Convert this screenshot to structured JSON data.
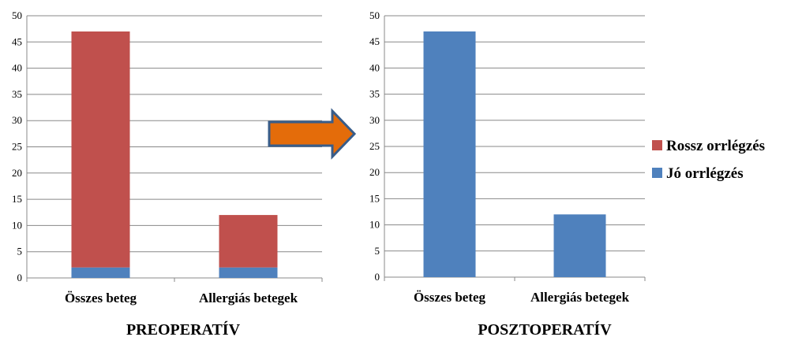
{
  "colors": {
    "bad": "#C0504D",
    "good": "#4F81BD",
    "arrow_fill": "#E46C0A",
    "arrow_stroke": "#385D8A",
    "grid": "#888888"
  },
  "legend": [
    {
      "label": "Rossz orrlégzés",
      "color": "#C0504D"
    },
    {
      "label": "Jó orrlégzés",
      "color": "#4F81BD"
    }
  ],
  "arrow_icon": "right-arrow-icon",
  "chart_data": [
    {
      "type": "bar",
      "stacked": true,
      "title": "PREOPERATÍV",
      "categories": [
        "Összes beteg",
        "Allergiás betegek"
      ],
      "series": [
        {
          "name": "Jó orrlégzés",
          "values": [
            2,
            2
          ]
        },
        {
          "name": "Rossz orrlégzés",
          "values": [
            45,
            10
          ]
        }
      ],
      "ylim": [
        0,
        50
      ],
      "yticks": [
        0,
        5,
        10,
        15,
        20,
        25,
        30,
        35,
        40,
        45,
        50
      ],
      "grid": true
    },
    {
      "type": "bar",
      "stacked": true,
      "title": "POSZTOPERATÍV",
      "categories": [
        "Összes beteg",
        "Allergiás betegek"
      ],
      "series": [
        {
          "name": "Jó orrlégzés",
          "values": [
            47,
            12
          ]
        },
        {
          "name": "Rossz orrlégzés",
          "values": [
            0,
            0
          ]
        }
      ],
      "ylim": [
        0,
        50
      ],
      "yticks": [
        0,
        5,
        10,
        15,
        20,
        25,
        30,
        35,
        40,
        45,
        50
      ],
      "grid": true
    }
  ]
}
